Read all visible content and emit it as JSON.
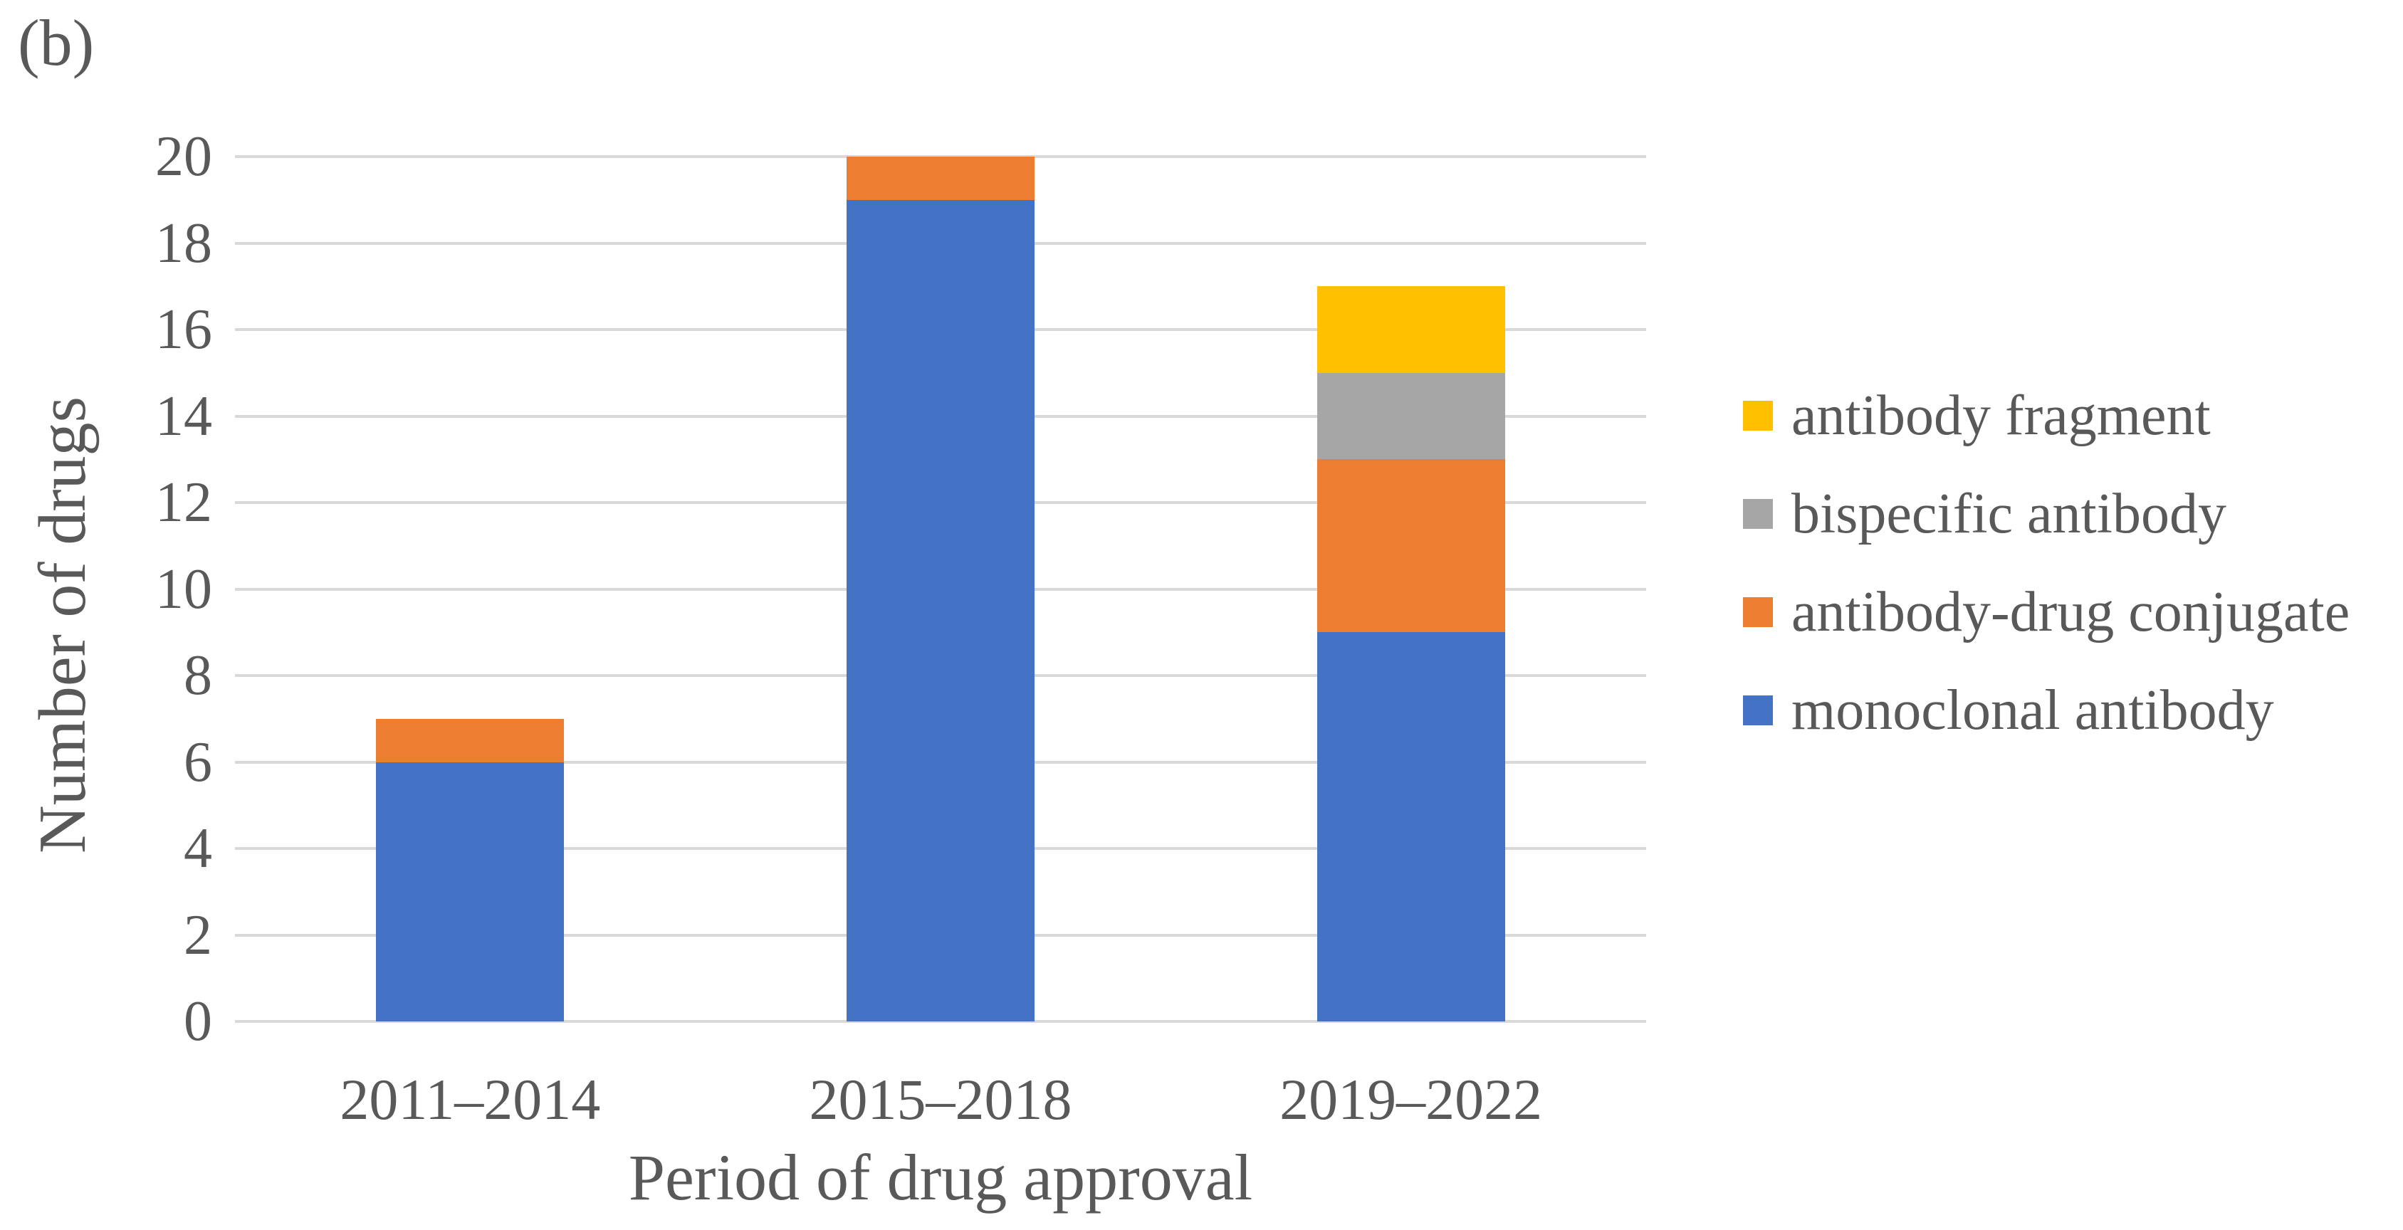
{
  "figure_label": "(b)",
  "text_color": "#595959",
  "chart_data": {
    "type": "bar",
    "stacked": true,
    "title": "",
    "xlabel": "Period of drug approval",
    "ylabel": "Number of drugs",
    "categories": [
      "2011–2014",
      "2015–2018",
      "2019–2022"
    ],
    "series": [
      {
        "name": "monoclonal antibody",
        "color": "#4472C4",
        "values": [
          6,
          19,
          9
        ]
      },
      {
        "name": "antibody-drug conjugate",
        "color": "#ED7D31",
        "values": [
          1,
          1,
          4
        ]
      },
      {
        "name": "bispecific antibody",
        "color": "#A6A6A6",
        "values": [
          0,
          0,
          2
        ]
      },
      {
        "name": "antibody fragment",
        "color": "#FFC000",
        "values": [
          0,
          0,
          2
        ]
      }
    ],
    "stack_totals": [
      7,
      20,
      17
    ],
    "ylim": [
      0,
      20
    ],
    "ytick_step": 2,
    "grid": true,
    "gridline_color": "#D9D9D9",
    "legend_position": "right"
  },
  "legend": {
    "items": [
      {
        "label": "antibody fragment",
        "color": "#FFC000"
      },
      {
        "label": "bispecific antibody",
        "color": "#A6A6A6"
      },
      {
        "label": "antibody-drug conjugate",
        "color": "#ED7D31"
      },
      {
        "label": "monoclonal antibody",
        "color": "#4472C4"
      }
    ]
  }
}
